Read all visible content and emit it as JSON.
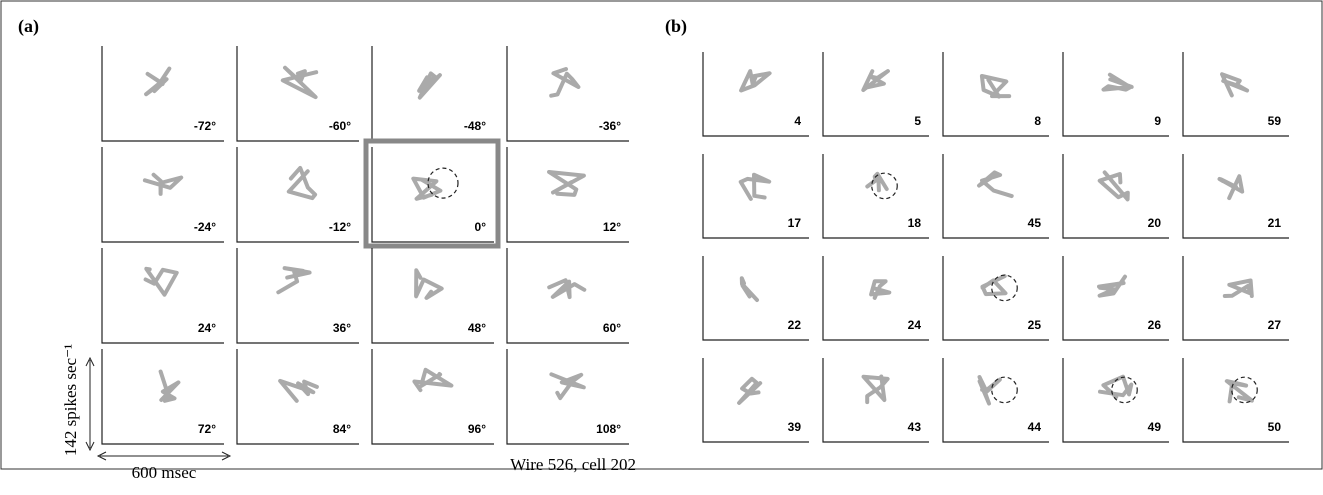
{
  "panel_a": {
    "label": "(a)",
    "y_scale_label": "142 spikes sec⁻¹",
    "x_scale_label": "600 msec",
    "caption": "Wire 526, cell 202",
    "cells": [
      {
        "label": "-72°"
      },
      {
        "label": "-60°"
      },
      {
        "label": "-48°"
      },
      {
        "label": "-36°"
      },
      {
        "label": "-24°"
      },
      {
        "label": "-12°"
      },
      {
        "label": "0°",
        "highlighted": true,
        "circled": true
      },
      {
        "label": "12°"
      },
      {
        "label": "24°"
      },
      {
        "label": "36°"
      },
      {
        "label": "48°"
      },
      {
        "label": "60°"
      },
      {
        "label": "72°"
      },
      {
        "label": "84°"
      },
      {
        "label": "96°"
      },
      {
        "label": "108°"
      }
    ]
  },
  "panel_b": {
    "label": "(b)",
    "cells": [
      {
        "label": "4"
      },
      {
        "label": "5"
      },
      {
        "label": "8"
      },
      {
        "label": "9"
      },
      {
        "label": "59"
      },
      {
        "label": "17"
      },
      {
        "label": "18",
        "circled": true
      },
      {
        "label": "45"
      },
      {
        "label": "20"
      },
      {
        "label": "21"
      },
      {
        "label": "22"
      },
      {
        "label": "24"
      },
      {
        "label": "25",
        "circled": true
      },
      {
        "label": "26"
      },
      {
        "label": "27"
      },
      {
        "label": "39"
      },
      {
        "label": "43"
      },
      {
        "label": "44",
        "circled": true
      },
      {
        "label": "49",
        "circled": true
      },
      {
        "label": "50",
        "circled": true
      }
    ]
  }
}
